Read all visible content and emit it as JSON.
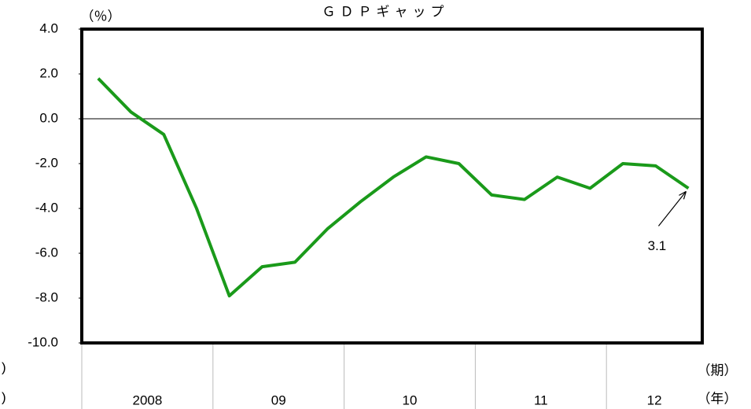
{
  "chart_data": {
    "type": "line",
    "title": "ＧＤＰギャップ",
    "y_unit_label": "（％）",
    "x_period_label": "（期）",
    "x_year_label": "（年）",
    "left_fragments": [
      ")",
      ")"
    ],
    "categories": [
      null,
      null,
      null,
      null,
      null,
      null,
      null,
      null,
      null,
      null,
      null,
      null,
      null,
      null,
      null,
      null,
      null,
      null,
      null
    ],
    "groups": [
      {
        "label": "2008",
        "count": 4
      },
      {
        "label": "09",
        "count": 4
      },
      {
        "label": "10",
        "count": 4
      },
      {
        "label": "11",
        "count": 4
      },
      {
        "label": "12",
        "count": 3
      }
    ],
    "series": [
      {
        "name": "GDP gap",
        "color": "#1a9a1a",
        "values": [
          1.8,
          0.3,
          -0.7,
          -4.0,
          -7.9,
          -6.6,
          -6.4,
          -4.9,
          -3.7,
          -2.6,
          -1.7,
          -2.0,
          -3.4,
          -3.6,
          -2.6,
          -3.1,
          -2.0,
          -2.1,
          -3.1
        ]
      }
    ],
    "annotation": {
      "text": "3.1",
      "index": 18
    },
    "ylim": [
      -10,
      4
    ],
    "yticks": [
      {
        "value": -10,
        "label": "-10.0"
      },
      {
        "value": -8,
        "label": "-8.0"
      },
      {
        "value": -6,
        "label": "-6.0"
      },
      {
        "value": -4,
        "label": "-4.0"
      },
      {
        "value": -2,
        "label": "-2.0"
      },
      {
        "value": 0,
        "label": "0.0"
      },
      {
        "value": 2,
        "label": "2.0"
      },
      {
        "value": 4,
        "label": "4.0"
      }
    ]
  }
}
